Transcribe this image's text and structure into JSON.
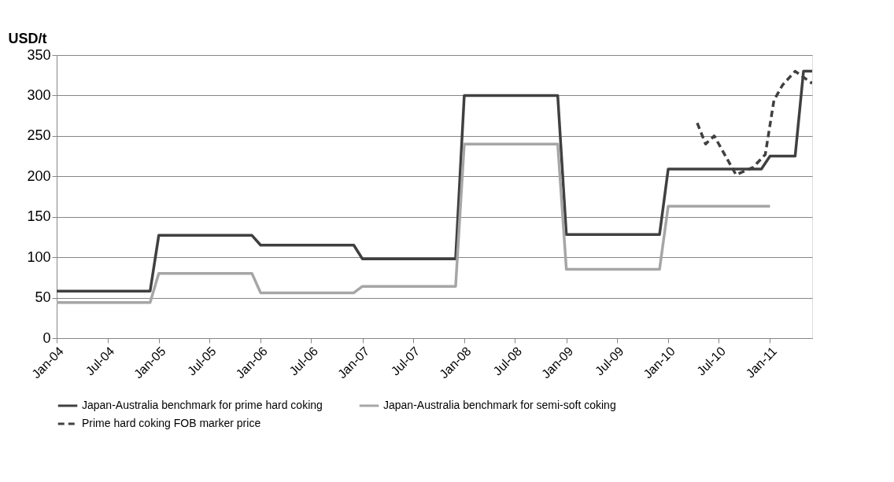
{
  "chart_data": {
    "type": "line",
    "ylabel": "USD/t",
    "xlim": [
      "2004-01-01",
      "2011-06-01"
    ],
    "xticks": [
      {
        "value": "2004-01-01",
        "label": "Jan-04"
      },
      {
        "value": "2004-07-01",
        "label": "Jul-04"
      },
      {
        "value": "2005-01-01",
        "label": "Jan-05"
      },
      {
        "value": "2005-07-01",
        "label": "Jul-05"
      },
      {
        "value": "2006-01-01",
        "label": "Jan-06"
      },
      {
        "value": "2006-07-01",
        "label": "Jul-06"
      },
      {
        "value": "2007-01-01",
        "label": "Jan-07"
      },
      {
        "value": "2007-07-01",
        "label": "Jul-07"
      },
      {
        "value": "2008-01-01",
        "label": "Jan-08"
      },
      {
        "value": "2008-07-01",
        "label": "Jul-08"
      },
      {
        "value": "2009-01-01",
        "label": "Jan-09"
      },
      {
        "value": "2009-07-01",
        "label": "Jul-09"
      },
      {
        "value": "2010-01-01",
        "label": "Jan-10"
      },
      {
        "value": "2010-07-01",
        "label": "Jul-10"
      },
      {
        "value": "2011-01-01",
        "label": "Jan-11"
      }
    ],
    "ylim": [
      0,
      350
    ],
    "yticks": [
      0,
      50,
      100,
      150,
      200,
      250,
      300,
      350
    ],
    "grid": "y",
    "legend": "bottom",
    "series": [
      {
        "name": "Japan-Australia benchmark for prime hard coking",
        "color": "#404040",
        "line_style": "solid",
        "x": [
          "2004-01-01",
          "2004-12-01",
          "2005-01-01",
          "2005-12-01",
          "2006-01-01",
          "2006-12-01",
          "2007-01-01",
          "2007-12-01",
          "2008-01-01",
          "2008-12-01",
          "2009-01-01",
          "2009-12-01",
          "2010-01-01",
          "2010-12-01",
          "2011-01-01",
          "2011-04-01",
          "2011-05-01",
          "2011-06-01"
        ],
        "values": [
          58,
          58,
          127,
          127,
          115,
          115,
          98,
          98,
          300,
          300,
          128,
          128,
          209,
          209,
          225,
          225,
          330,
          330
        ]
      },
      {
        "name": "Japan-Australia benchmark for semi-soft coking",
        "color": "#a6a6a6",
        "line_style": "solid",
        "x": [
          "2004-01-01",
          "2004-12-01",
          "2005-01-01",
          "2005-12-01",
          "2006-01-01",
          "2006-12-01",
          "2007-01-01",
          "2007-12-01",
          "2008-01-01",
          "2008-12-01",
          "2009-01-01",
          "2009-12-01",
          "2010-01-01",
          "2011-01-01"
        ],
        "values": [
          44,
          44,
          80,
          80,
          56,
          56,
          64,
          64,
          240,
          240,
          85,
          85,
          163,
          163
        ]
      },
      {
        "name": "Prime hard coking FOB marker price",
        "color": "#404040",
        "line_style": "dashed",
        "x": [
          "2010-04-15",
          "2010-05-15",
          "2010-06-15",
          "2010-09-01",
          "2010-11-01",
          "2010-12-15",
          "2011-01-15",
          "2011-02-15",
          "2011-04-01",
          "2011-06-01"
        ],
        "values": [
          266,
          240,
          250,
          202,
          211,
          227,
          294,
          313,
          330,
          315
        ]
      }
    ]
  }
}
